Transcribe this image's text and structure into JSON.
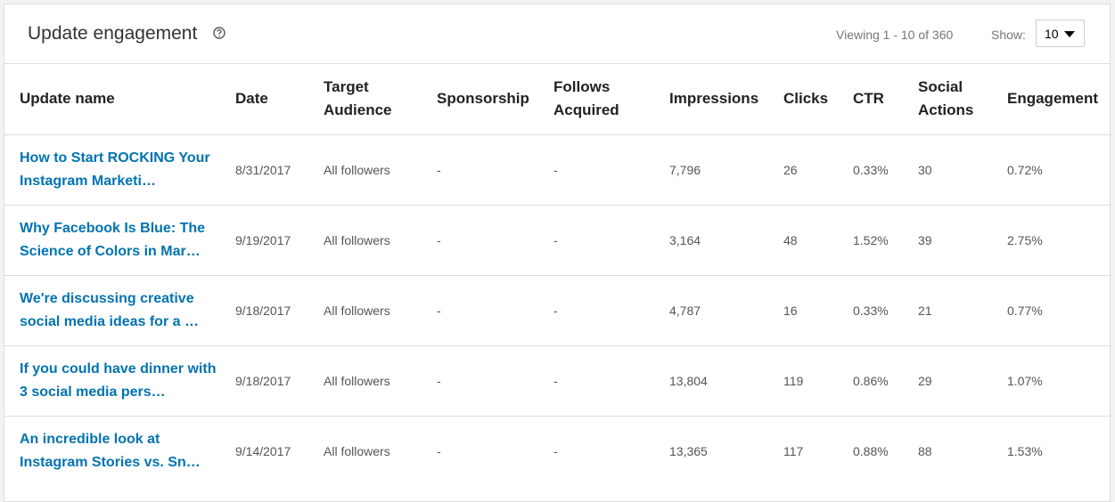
{
  "header": {
    "title": "Update engagement",
    "viewing": "Viewing 1 - 10 of 360",
    "show_label": "Show:",
    "show_value": "10"
  },
  "table": {
    "columns": [
      "Update name",
      "Date",
      "Target Audience",
      "Sponsorship",
      "Follows Acquired",
      "Impressions",
      "Clicks",
      "CTR",
      "Social Actions",
      "Engagement"
    ],
    "rows": [
      [
        "How to Start ROCKING Your Instagram Marketi…",
        "8/31/2017",
        "All followers",
        "-",
        "-",
        "7,796",
        "26",
        "0.33%",
        "30",
        "0.72%"
      ],
      [
        "Why Facebook Is Blue: The Science of Colors in Mar…",
        "9/19/2017",
        "All followers",
        "-",
        "-",
        "3,164",
        "48",
        "1.52%",
        "39",
        "2.75%"
      ],
      [
        "We're discussing creative social media ideas for a …",
        "9/18/2017",
        "All followers",
        "-",
        "-",
        "4,787",
        "16",
        "0.33%",
        "21",
        "0.77%"
      ],
      [
        "If you could have dinner with 3 social media pers…",
        "9/18/2017",
        "All followers",
        "-",
        "-",
        "13,804",
        "119",
        "0.86%",
        "29",
        "1.07%"
      ],
      [
        "An incredible look at Instagram Stories vs. Sn…",
        "9/14/2017",
        "All followers",
        "-",
        "-",
        "13,365",
        "117",
        "0.88%",
        "88",
        "1.53%"
      ]
    ]
  }
}
